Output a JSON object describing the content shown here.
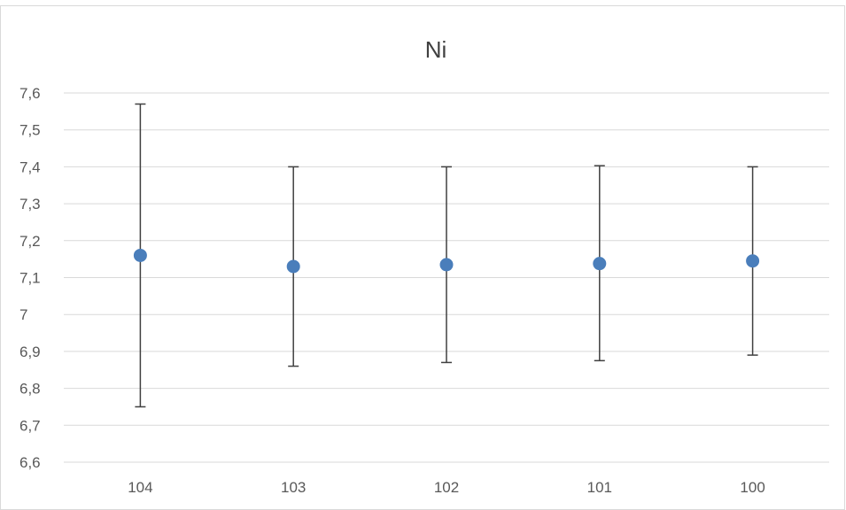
{
  "chart_data": {
    "type": "scatter",
    "title": "Ni",
    "xlabel": "",
    "ylabel": "",
    "categories": [
      "104",
      "103",
      "102",
      "101",
      "100"
    ],
    "series": [
      {
        "values": [
          7.16,
          7.13,
          7.135,
          7.138,
          7.145
        ],
        "error_low": [
          6.75,
          6.86,
          6.87,
          6.875,
          6.89
        ],
        "error_high": [
          7.57,
          7.4,
          7.4,
          7.403,
          7.4
        ]
      }
    ],
    "ylim": [
      6.6,
      7.6
    ],
    "yticks": [
      "6,6",
      "6,7",
      "6,8",
      "6,9",
      "7",
      "7,1",
      "7,2",
      "7,3",
      "7,4",
      "7,5",
      "7,6"
    ],
    "grid": true,
    "legend": "none",
    "colors": {
      "point": "#4a7ebb",
      "error_bar": "#404040",
      "grid": "#d9d9d9",
      "text": "#595959",
      "title": "#404040"
    }
  }
}
